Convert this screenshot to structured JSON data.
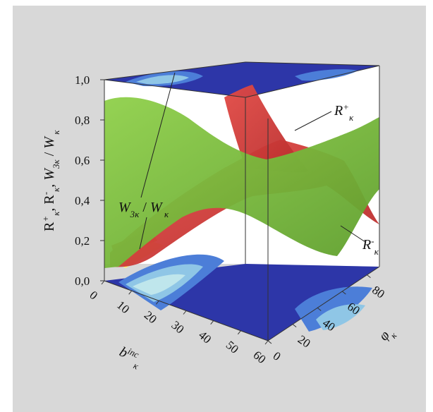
{
  "chart_data": {
    "type": "surface3d",
    "title": "",
    "zlabel": "R⁺κ, R⁻κ, W3κ / Wκ",
    "xlabel": "bκ inc",
    "ylabel": "φκ",
    "zlim": [
      0,
      1
    ],
    "xlim": [
      0,
      60
    ],
    "ylim": [
      0,
      90
    ],
    "z_ticks": [
      "0,0",
      "0,2",
      "0,4",
      "0,6",
      "0,8",
      "1,0"
    ],
    "x_ticks": [
      "0",
      "10",
      "20",
      "30",
      "40",
      "50",
      "60"
    ],
    "y_ticks": [
      "0",
      "20",
      "40",
      "60",
      "80"
    ],
    "series": [
      {
        "name": "R⁺κ",
        "color": "#d93b3b",
        "description_values": "red surface, rises to ~0.9 near b=0..10 and phi high",
        "x": [
          0,
          20,
          40,
          60
        ],
        "y": [
          0,
          30,
          60,
          90
        ],
        "z": [
          [
            0.15,
            0.3,
            0.55,
            0.8
          ],
          [
            0.25,
            0.4,
            0.6,
            0.7
          ],
          [
            0.35,
            0.45,
            0.55,
            0.5
          ],
          [
            0.4,
            0.45,
            0.45,
            0.35
          ]
        ]
      },
      {
        "name": "R⁻κ",
        "color": "#7cbd3a",
        "x": [
          0,
          20,
          40,
          60
        ],
        "y": [
          0,
          30,
          60,
          90
        ],
        "z": [
          [
            0.8,
            0.7,
            0.5,
            0.4
          ],
          [
            0.85,
            0.55,
            0.35,
            0.3
          ],
          [
            0.7,
            0.45,
            0.4,
            0.55
          ],
          [
            0.55,
            0.5,
            0.6,
            0.7
          ]
        ]
      },
      {
        "name": "W3κ / Wκ",
        "color": "#2d3bbd",
        "x": [
          0,
          20,
          40,
          60
        ],
        "y": [
          0,
          30,
          60,
          90
        ],
        "z": [
          [
            0.05,
            0.05,
            0.0,
            0.0
          ],
          [
            0.0,
            0.0,
            0.0,
            0.0
          ],
          [
            0.0,
            0.0,
            0.05,
            0.05
          ],
          [
            0.0,
            0.0,
            0.05,
            0.1
          ]
        ]
      }
    ],
    "annotations": [
      {
        "label": "R⁺κ"
      },
      {
        "label": "R⁻κ"
      },
      {
        "label": "W3κ / Wκ"
      }
    ],
    "colors": {
      "projection_bands": [
        "#2d36a8",
        "#4c7ed8",
        "#8fc6e6",
        "#bfe6ec",
        "#fff27a",
        "#f6b53a",
        "#e23b2d"
      ]
    }
  }
}
